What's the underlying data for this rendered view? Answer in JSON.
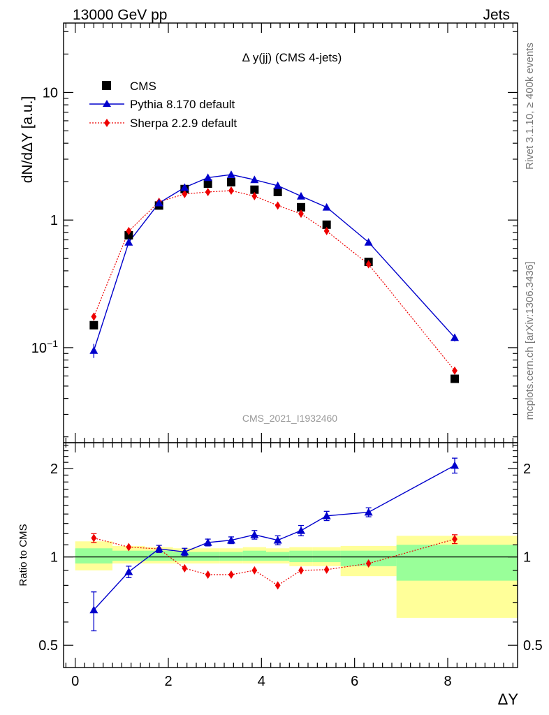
{
  "header": {
    "left": "13000 GeV pp",
    "right": "Jets"
  },
  "side_labels": {
    "rivet": "Rivet 3.1.10, ≥ 400k events",
    "mcplots": "mcplots.cern.ch [arXiv:1306.3436]"
  },
  "colors": {
    "cms": "#000000",
    "pythia": "#0000cc",
    "sherpa": "#ee0000",
    "band_green": "#99ff99",
    "band_yellow": "#ffff99",
    "watermark": "#999999"
  },
  "chart_data": [
    {
      "type": "scatter",
      "title": "Δ y(jj) (CMS 4-jets)",
      "watermark": "CMS_2021_I1932460",
      "ylabel": "dN/dΔY [a.u.]",
      "xlabel": "",
      "yscale": "log",
      "xlim": [
        -0.25,
        9.5
      ],
      "ylim": [
        0.018,
        35
      ],
      "yticks": [
        0.1,
        1,
        10
      ],
      "ytick_labels": [
        "10−1",
        "1",
        "10"
      ],
      "legend_position": "top-left",
      "series": [
        {
          "name": "CMS",
          "style": "black squares",
          "x": [
            0.4,
            1.15,
            1.8,
            2.35,
            2.85,
            3.35,
            3.85,
            4.35,
            4.85,
            5.4,
            6.3,
            8.15
          ],
          "y": [
            0.15,
            0.76,
            1.3,
            1.75,
            1.93,
            1.98,
            1.73,
            1.66,
            1.26,
            0.92,
            0.47,
            0.057
          ]
        },
        {
          "name": "Pythia 8.170 default",
          "style": "blue triangles, solid line",
          "x": [
            0.4,
            1.15,
            1.8,
            2.35,
            2.85,
            3.35,
            3.85,
            4.35,
            4.85,
            5.4,
            6.3,
            8.15
          ],
          "y": [
            0.095,
            0.67,
            1.36,
            1.8,
            2.15,
            2.27,
            2.07,
            1.86,
            1.54,
            1.26,
            0.67,
            0.12
          ],
          "err": [
            0.012,
            0.03,
            0.04,
            0.05,
            0.05,
            0.05,
            0.05,
            0.05,
            0.04,
            0.03,
            0.02,
            0.008
          ]
        },
        {
          "name": "Sherpa 2.2.9 default",
          "style": "red diamonds, dotted line",
          "x": [
            0.4,
            1.15,
            1.8,
            2.35,
            2.85,
            3.35,
            3.85,
            4.35,
            4.85,
            5.4,
            6.3,
            8.15
          ],
          "y": [
            0.175,
            0.82,
            1.39,
            1.6,
            1.66,
            1.7,
            1.54,
            1.3,
            1.12,
            0.82,
            0.45,
            0.066
          ]
        }
      ]
    },
    {
      "type": "scatter",
      "title": "",
      "ylabel": "Ratio to CMS",
      "xlabel": "ΔY",
      "yscale": "log",
      "xlim": [
        -0.25,
        9.5
      ],
      "ylim": [
        0.42,
        2.45
      ],
      "xticks": [
        0,
        2,
        4,
        6,
        8
      ],
      "yticks": [
        0.5,
        1,
        2
      ],
      "reference_line": 1,
      "bins": [
        {
          "lo": 0,
          "hi": 0.8,
          "inner": [
            0.95,
            1.07
          ],
          "outer": [
            0.9,
            1.13
          ]
        },
        {
          "lo": 0.8,
          "hi": 1.5,
          "inner": [
            0.97,
            1.05
          ],
          "outer": [
            0.95,
            1.09
          ]
        },
        {
          "lo": 1.5,
          "hi": 2.1,
          "inner": [
            0.97,
            1.05
          ],
          "outer": [
            0.95,
            1.08
          ]
        },
        {
          "lo": 2.1,
          "hi": 2.6,
          "inner": [
            0.97,
            1.04
          ],
          "outer": [
            0.95,
            1.07
          ]
        },
        {
          "lo": 2.6,
          "hi": 3.1,
          "inner": [
            0.97,
            1.04
          ],
          "outer": [
            0.95,
            1.07
          ]
        },
        {
          "lo": 3.1,
          "hi": 3.6,
          "inner": [
            0.97,
            1.04
          ],
          "outer": [
            0.95,
            1.07
          ]
        },
        {
          "lo": 3.6,
          "hi": 4.1,
          "inner": [
            0.97,
            1.05
          ],
          "outer": [
            0.95,
            1.08
          ]
        },
        {
          "lo": 4.1,
          "hi": 4.6,
          "inner": [
            0.97,
            1.04
          ],
          "outer": [
            0.95,
            1.07
          ]
        },
        {
          "lo": 4.6,
          "hi": 5.1,
          "inner": [
            0.96,
            1.05
          ],
          "outer": [
            0.93,
            1.08
          ]
        },
        {
          "lo": 5.1,
          "hi": 5.7,
          "inner": [
            0.96,
            1.05
          ],
          "outer": [
            0.93,
            1.08
          ]
        },
        {
          "lo": 5.7,
          "hi": 6.9,
          "inner": [
            0.93,
            1.05
          ],
          "outer": [
            0.86,
            1.09
          ]
        },
        {
          "lo": 6.9,
          "hi": 9.5,
          "inner": [
            0.83,
            1.1
          ],
          "outer": [
            0.62,
            1.18
          ]
        }
      ],
      "series": [
        {
          "name": "Pythia 8.170 default",
          "x": [
            0.4,
            1.15,
            1.8,
            2.35,
            2.85,
            3.35,
            3.85,
            4.35,
            4.85,
            5.4,
            6.3,
            8.15
          ],
          "y": [
            0.66,
            0.89,
            1.065,
            1.04,
            1.12,
            1.14,
            1.19,
            1.14,
            1.23,
            1.38,
            1.42,
            2.05
          ],
          "err": [
            0.1,
            0.04,
            0.03,
            0.03,
            0.03,
            0.03,
            0.04,
            0.04,
            0.05,
            0.05,
            0.05,
            0.12
          ]
        },
        {
          "name": "Sherpa 2.2.9 default",
          "x": [
            0.4,
            1.15,
            1.8,
            2.35,
            2.85,
            3.35,
            3.85,
            4.35,
            4.85,
            5.4,
            6.3,
            8.15
          ],
          "y": [
            1.16,
            1.08,
            1.065,
            0.915,
            0.87,
            0.87,
            0.9,
            0.8,
            0.9,
            0.905,
            0.95,
            1.15
          ],
          "err": [
            0.04,
            0,
            0,
            0,
            0,
            0,
            0,
            0,
            0,
            0,
            0,
            0.04
          ]
        }
      ]
    }
  ]
}
